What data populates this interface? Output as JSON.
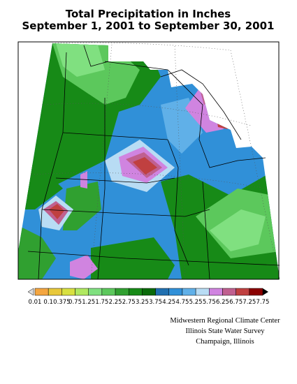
{
  "header": {
    "title": "Total Precipitation in Inches",
    "subtitle": "September 1, 2001 to September 30, 2001"
  },
  "legend": {
    "labels": [
      "0.01",
      "0.1",
      "0.375",
      "0.75",
      "1.25",
      "1.75",
      "2.25",
      "2.75",
      "3.25",
      "3.75",
      "4.25",
      "4.75",
      "5.25",
      "5.75",
      "6.25",
      "6.75",
      "7.25",
      "7.75"
    ],
    "colors": [
      "#f4a640",
      "#e8c83a",
      "#d8e040",
      "#b0e860",
      "#80e080",
      "#5cc85c",
      "#30a030",
      "#178a17",
      "#0a6a0a",
      "#2070b0",
      "#3090d8",
      "#60b0e8",
      "#b8dcf4",
      "#d084e0",
      "#c06090",
      "#c04040",
      "#8a0000"
    ]
  },
  "credits": [
    "Midwestern Regional Climate Center",
    "Illinois State Water Survey",
    "Champaign, Illinois"
  ]
}
